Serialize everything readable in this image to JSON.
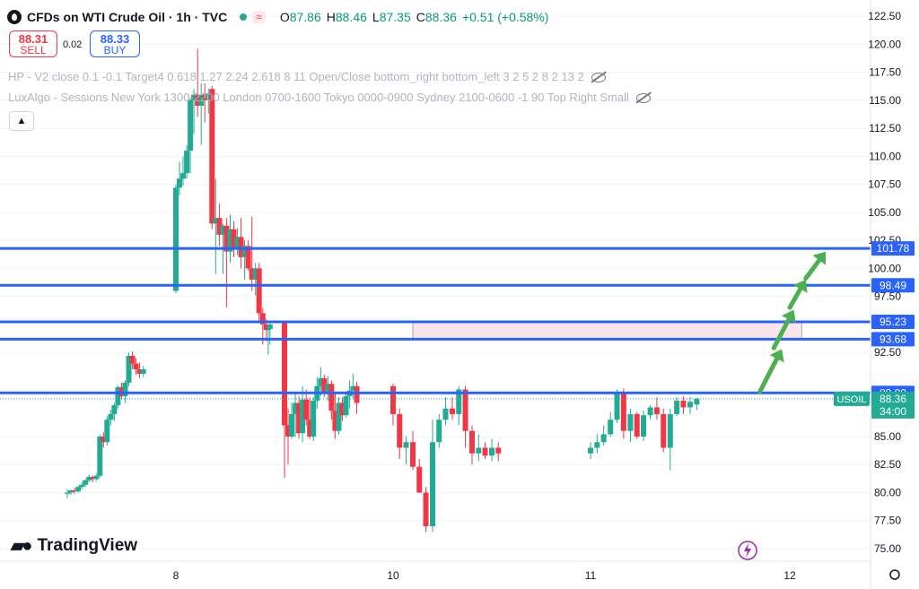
{
  "header": {
    "symbol": "CFDs on WTI Crude Oil · 1h · TVC",
    "logo_icon": "oil-drop-icon",
    "open_label": "O",
    "open": "87.86",
    "high_label": "H",
    "high": "88.46",
    "low_label": "L",
    "low": "87.35",
    "close_label": "C",
    "close": "88.36",
    "change": "+0.51 (+0.58%)"
  },
  "trade": {
    "sell_price": "88.31",
    "sell_label": "SELL",
    "spread": "0.02",
    "buy_price": "88.33",
    "buy_label": "BUY"
  },
  "indicators": [
    "HP - V2 close 0.1 -0.1 Target4 0.618 1.27 2.24 2.618 8 11 Open/Close bottom_right bottom_left 3 2 5 2 8 2 13 2",
    "LuxAlgo - Sessions New York 1300-2200 London 0700-1600 Tokyo 0000-0900 Sydney 2100-0600 -1 90 Top Right Small"
  ],
  "collapse_icon": "chevron-up-icon",
  "brand": "TradingView",
  "colors": {
    "up": "#22ab94",
    "down": "#f23645",
    "level": "#2962ff",
    "zone": "#fce4ec",
    "arrow": "#4caf50"
  },
  "chart_data": {
    "type": "candlestick",
    "y_ticks": [
      122.5,
      120.0,
      117.5,
      115.0,
      112.5,
      110.0,
      107.5,
      105.0,
      102.5,
      100.0,
      97.5,
      92.5,
      85.0,
      82.5,
      80.0,
      77.5,
      75.0
    ],
    "x_ticks": [
      {
        "label": "8",
        "x": 8
      },
      {
        "label": "10",
        "x": 10
      },
      {
        "label": "11",
        "x": 11
      },
      {
        "label": "12",
        "x": 12
      }
    ],
    "ylim": [
      73.0,
      123.5
    ],
    "levels": [
      {
        "price": 101.78,
        "label": "101.78"
      },
      {
        "price": 98.49,
        "label": "98.49"
      },
      {
        "price": 95.23,
        "label": "95.23"
      },
      {
        "price": 93.68,
        "label": "93.68"
      },
      {
        "price": 88.89,
        "label": "88.89"
      }
    ],
    "current": {
      "symbol": "USOIL",
      "price": "88.36",
      "countdown": "34:00",
      "value": 88.36
    },
    "zone": {
      "x_from": 10.1,
      "x_to": 12.06,
      "top": 95.23,
      "bottom": 93.68
    },
    "arrows": [
      {
        "from": [
          11.85,
          89.0
        ],
        "to": [
          11.96,
          92.8
        ]
      },
      {
        "from": [
          11.92,
          92.9
        ],
        "to": [
          12.02,
          96.3
        ]
      },
      {
        "from": [
          12.0,
          96.5
        ],
        "to": [
          12.08,
          99.0
        ]
      },
      {
        "from": [
          12.08,
          99.1
        ],
        "to": [
          12.18,
          101.5
        ]
      }
    ],
    "candles": [
      [
        7.0,
        79.9,
        80.3,
        79.5,
        80.0
      ],
      [
        7.033,
        80.0,
        80.3,
        79.8,
        80.2
      ],
      [
        7.066,
        80.2,
        80.4,
        79.9,
        80.1
      ],
      [
        7.1,
        80.1,
        80.6,
        80.0,
        80.5
      ],
      [
        7.133,
        80.5,
        80.9,
        80.3,
        80.7
      ],
      [
        7.166,
        80.7,
        81.2,
        80.5,
        81.1
      ],
      [
        7.2,
        81.1,
        81.6,
        80.9,
        81.4
      ],
      [
        7.233,
        81.4,
        81.5,
        80.9,
        81.2
      ],
      [
        7.266,
        81.2,
        81.7,
        81.0,
        81.5
      ],
      [
        7.3,
        81.5,
        85.2,
        81.3,
        85.0
      ],
      [
        7.333,
        85.0,
        85.4,
        84.0,
        84.5
      ],
      [
        7.366,
        84.5,
        86.8,
        84.2,
        86.5
      ],
      [
        7.4,
        86.5,
        87.4,
        86.0,
        87.0
      ],
      [
        7.433,
        87.0,
        88.0,
        86.4,
        87.8
      ],
      [
        7.466,
        87.8,
        89.6,
        87.5,
        89.4
      ],
      [
        7.5,
        89.4,
        89.8,
        88.3,
        88.6
      ],
      [
        7.533,
        88.6,
        90.0,
        88.0,
        89.8
      ],
      [
        7.566,
        89.8,
        92.5,
        89.5,
        92.2
      ],
      [
        7.6,
        92.2,
        92.6,
        91.0,
        91.5
      ],
      [
        7.633,
        91.5,
        92.0,
        90.5,
        91.0
      ],
      [
        7.666,
        91.0,
        91.6,
        90.2,
        90.6
      ],
      [
        7.7,
        90.6,
        91.3,
        90.3,
        91.0
      ],
      [
        8.0,
        98.0,
        107.5,
        97.8,
        107.2
      ],
      [
        8.033,
        107.2,
        109.5,
        106.5,
        108.0
      ],
      [
        8.066,
        108.0,
        110.0,
        107.4,
        108.5
      ],
      [
        8.1,
        108.5,
        111.0,
        108.0,
        110.5
      ],
      [
        8.133,
        110.5,
        115.2,
        108.5,
        115.0
      ],
      [
        8.166,
        115.0,
        116.0,
        112.0,
        115.5
      ],
      [
        8.2,
        115.5,
        119.6,
        113.5,
        114.5
      ],
      [
        8.233,
        114.5,
        116.5,
        111.0,
        115.5
      ],
      [
        8.266,
        115.5,
        116.5,
        113.0,
        115.0
      ],
      [
        8.3,
        115.0,
        116.0,
        113.8,
        115.6
      ],
      [
        8.333,
        116.0,
        116.3,
        103.5,
        104.0
      ],
      [
        8.366,
        104.0,
        108.0,
        99.5,
        104.5
      ],
      [
        8.4,
        104.5,
        105.8,
        102.0,
        103.0
      ],
      [
        8.433,
        103.0,
        104.0,
        99.5,
        103.8
      ],
      [
        8.466,
        103.8,
        104.5,
        96.5,
        101.5
      ],
      [
        8.5,
        101.5,
        104.8,
        100.5,
        103.5
      ],
      [
        8.533,
        103.5,
        104.2,
        101.0,
        101.8
      ],
      [
        8.566,
        101.8,
        103.6,
        101.2,
        102.8
      ],
      [
        8.6,
        102.8,
        104.5,
        100.0,
        101.0
      ],
      [
        8.633,
        101.0,
        102.5,
        99.0,
        102.0
      ],
      [
        8.666,
        102.0,
        102.5,
        99.8,
        100.0
      ],
      [
        8.7,
        100.0,
        104.6,
        98.0,
        99.0
      ],
      [
        8.733,
        99.0,
        100.5,
        97.6,
        100.0
      ],
      [
        8.766,
        100.0,
        100.5,
        95.2,
        96.0
      ],
      [
        8.8,
        96.0,
        96.5,
        93.2,
        95.0
      ],
      [
        8.833,
        95.0,
        95.5,
        93.5,
        94.5
      ],
      [
        8.85,
        94.5,
        95.0,
        92.3,
        94.6
      ],
      [
        8.866,
        94.6,
        95.2,
        93.2,
        95.0
      ],
      [
        9.0,
        95.2,
        95.3,
        81.3,
        86.0
      ],
      [
        9.033,
        86.0,
        87.5,
        82.5,
        85.0
      ],
      [
        9.066,
        85.0,
        88.0,
        84.8,
        87.0
      ],
      [
        9.1,
        87.0,
        89.0,
        85.0,
        88.0
      ],
      [
        9.133,
        88.0,
        88.6,
        84.8,
        85.3
      ],
      [
        9.166,
        85.3,
        89.5,
        84.5,
        88.3
      ],
      [
        9.2,
        88.3,
        89.2,
        86.0,
        86.5
      ],
      [
        9.233,
        86.5,
        88.5,
        84.8,
        85.0
      ],
      [
        9.266,
        85.0,
        88.5,
        84.6,
        88.2
      ],
      [
        9.3,
        88.2,
        90.3,
        87.5,
        89.5
      ],
      [
        9.333,
        89.5,
        91.2,
        88.6,
        90.2
      ],
      [
        9.366,
        90.2,
        90.5,
        88.5,
        89.0
      ],
      [
        9.4,
        89.0,
        90.4,
        88.2,
        89.7
      ],
      [
        9.433,
        89.7,
        90.0,
        86.5,
        87.3
      ],
      [
        9.466,
        87.3,
        89.0,
        84.8,
        85.5
      ],
      [
        9.5,
        85.5,
        88.5,
        85.2,
        88.0
      ],
      [
        9.533,
        88.0,
        88.5,
        86.4,
        86.9
      ],
      [
        9.566,
        86.9,
        89.0,
        86.7,
        88.6
      ],
      [
        9.6,
        88.6,
        90.0,
        87.5,
        89.1
      ],
      [
        9.633,
        89.1,
        90.6,
        88.3,
        89.5
      ],
      [
        9.666,
        89.5,
        89.9,
        87.0,
        88.0
      ],
      [
        10.0,
        89.5,
        89.7,
        86.0,
        87.0
      ],
      [
        10.033,
        87.0,
        87.5,
        83.0,
        84.0
      ],
      [
        10.066,
        84.0,
        85.0,
        82.5,
        84.5
      ],
      [
        10.1,
        84.5,
        85.5,
        82.0,
        82.3
      ],
      [
        10.133,
        82.3,
        83.0,
        80.0,
        80.0
      ],
      [
        10.166,
        80.0,
        80.5,
        76.5,
        77.0
      ],
      [
        10.2,
        77.0,
        86.5,
        76.5,
        84.5
      ],
      [
        10.233,
        84.5,
        87.0,
        84.0,
        86.5
      ],
      [
        10.266,
        86.5,
        88.5,
        86.0,
        87.5
      ],
      [
        10.3,
        87.5,
        88.5,
        86.5,
        87.0
      ],
      [
        10.333,
        87.0,
        89.5,
        86.0,
        89.2
      ],
      [
        10.366,
        89.2,
        89.5,
        84.0,
        85.5
      ],
      [
        10.4,
        85.5,
        86.0,
        82.5,
        83.5
      ],
      [
        10.433,
        83.5,
        85.2,
        82.8,
        84.0
      ],
      [
        10.466,
        84.0,
        84.5,
        83.0,
        83.3
      ],
      [
        10.5,
        83.3,
        84.8,
        82.8,
        84.0
      ],
      [
        10.533,
        84.0,
        84.5,
        82.8,
        83.5
      ],
      [
        11.0,
        83.5,
        84.5,
        83.0,
        84.0
      ],
      [
        11.033,
        84.0,
        85.2,
        83.5,
        84.5
      ],
      [
        11.066,
        84.5,
        86.0,
        84.2,
        85.2
      ],
      [
        11.1,
        85.2,
        87.2,
        85.0,
        86.5
      ],
      [
        11.133,
        86.5,
        89.2,
        86.2,
        89.0
      ],
      [
        11.166,
        89.0,
        89.3,
        84.8,
        85.5
      ],
      [
        11.2,
        85.5,
        87.5,
        84.5,
        87.0
      ],
      [
        11.233,
        87.0,
        87.2,
        84.8,
        85.0
      ],
      [
        11.266,
        85.0,
        87.3,
        84.6,
        86.9
      ],
      [
        11.3,
        86.9,
        87.8,
        86.5,
        87.6
      ],
      [
        11.333,
        87.6,
        88.5,
        86.5,
        87.0
      ],
      [
        11.366,
        87.0,
        87.5,
        83.6,
        84.0
      ],
      [
        11.4,
        84.0,
        87.5,
        82.0,
        87.0
      ],
      [
        11.433,
        87.0,
        88.5,
        86.8,
        88.2
      ],
      [
        11.466,
        88.2,
        88.6,
        87.0,
        87.6
      ],
      [
        11.5,
        87.6,
        88.5,
        87.0,
        88.1
      ],
      [
        11.533,
        87.86,
        88.46,
        87.35,
        88.36
      ]
    ]
  }
}
